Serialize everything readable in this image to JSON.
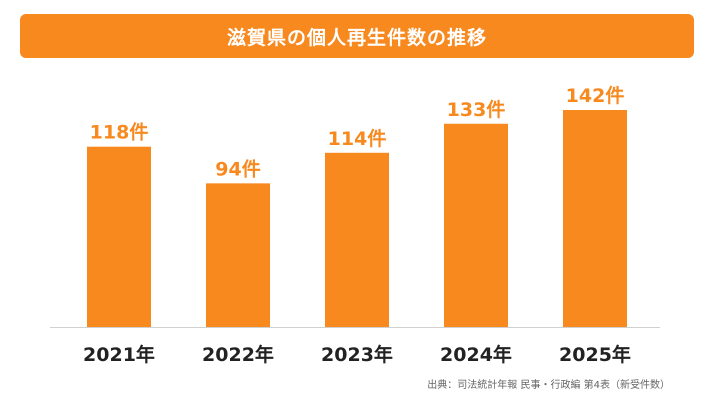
{
  "chart_data": {
    "type": "bar",
    "title": "滋賀県の個人再生件数の推移",
    "categories": [
      "2021年",
      "2022年",
      "2023年",
      "2024年",
      "2025年"
    ],
    "values": [
      118,
      94,
      114,
      133,
      142
    ],
    "value_labels": [
      "118件",
      "94件",
      "114件",
      "133件",
      "142件"
    ],
    "xlabel": "",
    "ylabel": "",
    "ylim": [
      0,
      142
    ],
    "grid": false,
    "legend": "none",
    "bar_color": "#f7891f",
    "label_color": "#f7891f"
  },
  "source": "出典：司法統計年報 民事・行政編 第4表（新受件数）"
}
